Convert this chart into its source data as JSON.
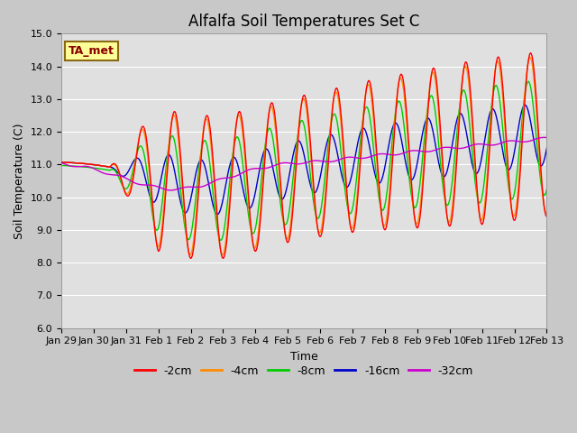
{
  "title": "Alfalfa Soil Temperatures Set C",
  "xlabel": "Time",
  "ylabel": "Soil Temperature (C)",
  "ylim": [
    6.0,
    15.0
  ],
  "yticks": [
    6.0,
    7.0,
    8.0,
    9.0,
    10.0,
    11.0,
    12.0,
    13.0,
    14.0,
    15.0
  ],
  "xtick_labels": [
    "Jan 29",
    "Jan 30",
    "Jan 31",
    "Feb 1",
    "Feb 2",
    "Feb 3",
    "Feb 4",
    "Feb 5",
    "Feb 6",
    "Feb 7",
    "Feb 8",
    "Feb 9",
    "Feb 10",
    "Feb 11",
    "Feb 12",
    "Feb 13"
  ],
  "colors": {
    "-2cm": "#FF0000",
    "-4cm": "#FF8C00",
    "-8cm": "#00CC00",
    "-16cm": "#0000CC",
    "-32cm": "#CC00CC"
  },
  "legend_labels": [
    "-2cm",
    "-4cm",
    "-8cm",
    "-16cm",
    "-32cm"
  ],
  "ta_met_label": "TA_met",
  "fig_bg_color": "#C8C8C8",
  "plot_bg_color": "#E0E0E0",
  "grid_color": "#FFFFFF",
  "title_fontsize": 12,
  "label_fontsize": 9,
  "tick_fontsize": 8,
  "legend_fontsize": 9
}
